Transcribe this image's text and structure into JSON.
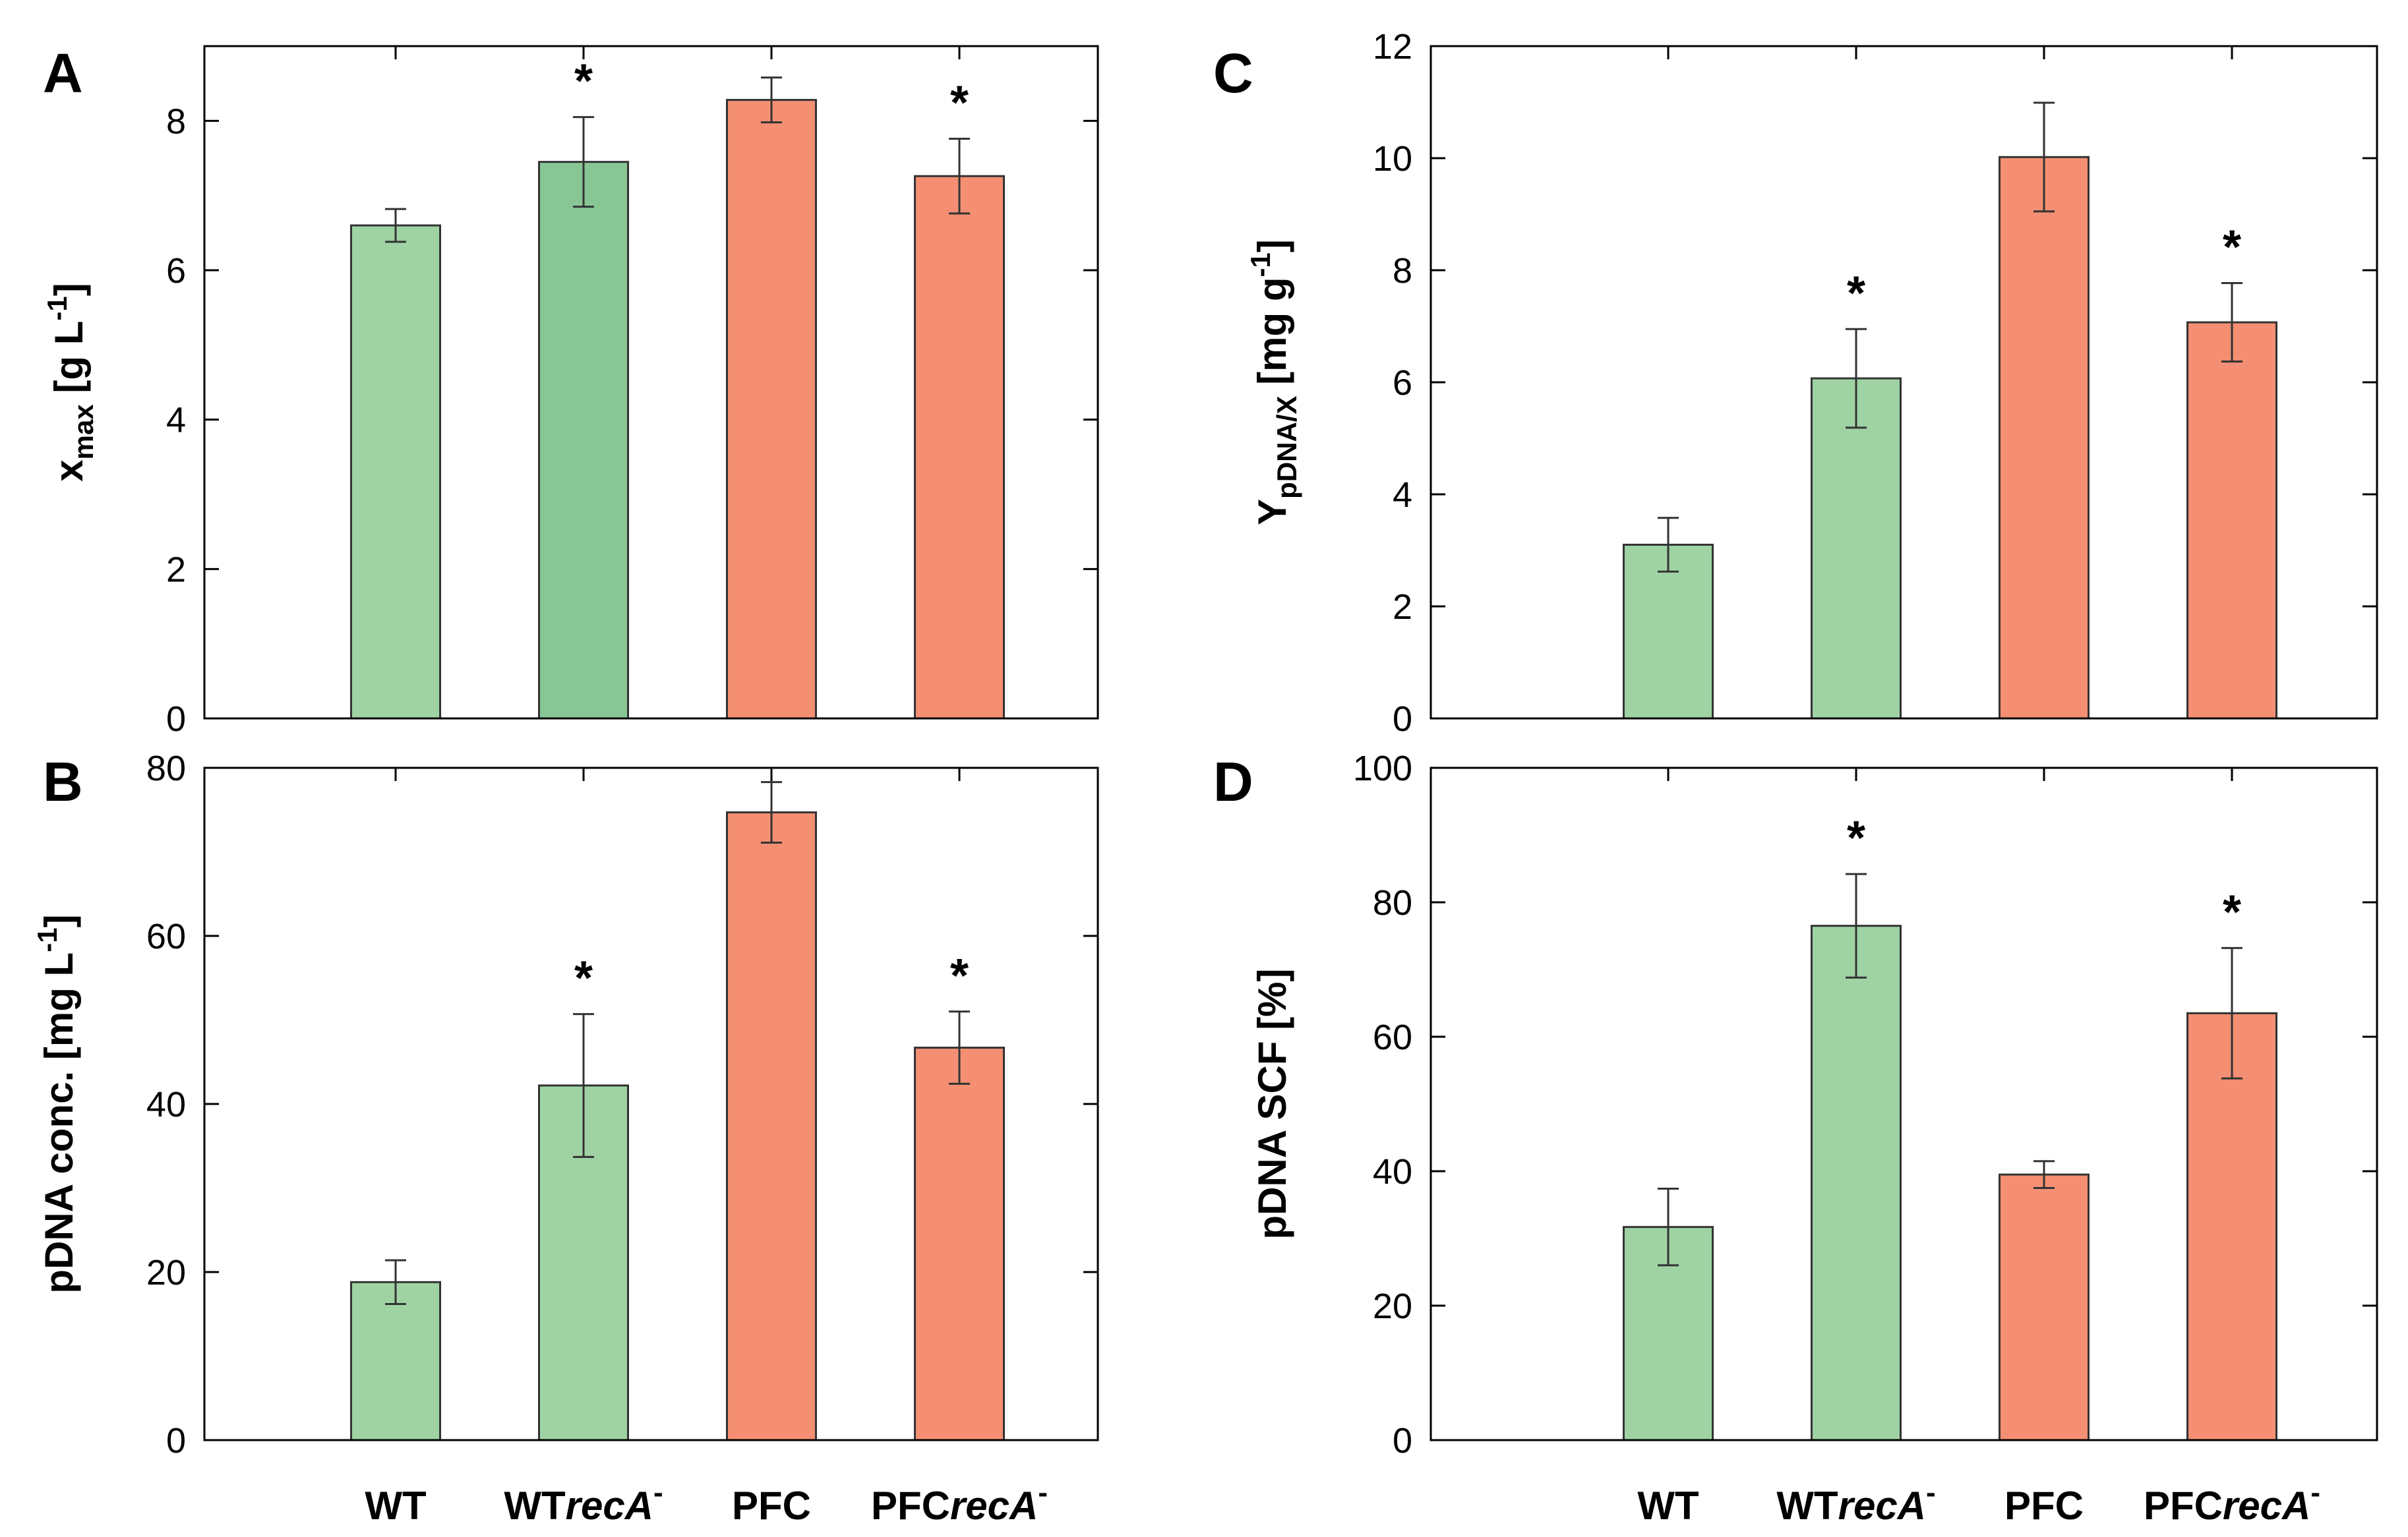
{
  "colors": {
    "green": "#9fd3a4",
    "green_dark": "#88c795",
    "orange": "#f48f73"
  },
  "category_labels": [
    {
      "base": "WT",
      "italic": "",
      "sup": ""
    },
    {
      "base": "WT",
      "italic": "recA",
      "sup": "-"
    },
    {
      "base": "PFC",
      "italic": "",
      "sup": ""
    },
    {
      "base": "PFC",
      "italic": "recA",
      "sup": "-"
    }
  ],
  "chart_data": [
    {
      "panel": "A",
      "type": "bar",
      "categories": [
        "WT",
        "WTrecA-",
        "PFC",
        "PFCrecA-"
      ],
      "values": [
        6.6,
        7.45,
        8.28,
        7.26
      ],
      "errors": [
        0.22,
        0.6,
        0.3,
        0.5
      ],
      "significant": [
        false,
        true,
        false,
        true
      ],
      "bar_colors": [
        "green",
        "green_dark",
        "orange",
        "orange"
      ],
      "ylim": [
        0,
        9
      ],
      "yticks": [
        0,
        2,
        4,
        6,
        8
      ],
      "ylabel": {
        "main": "x",
        "sub": "max",
        "unit": " [g L",
        "sup": "-1",
        "close": "]"
      },
      "show_categories": false
    },
    {
      "panel": "B",
      "type": "bar",
      "categories": [
        "WT",
        "WTrecA-",
        "PFC",
        "PFCrecA-"
      ],
      "values": [
        18.8,
        42.2,
        74.7,
        46.7
      ],
      "errors": [
        2.6,
        8.5,
        3.6,
        4.3
      ],
      "significant": [
        false,
        true,
        false,
        true
      ],
      "bar_colors": [
        "green",
        "green",
        "orange",
        "orange"
      ],
      "ylim": [
        0,
        80
      ],
      "yticks": [
        0,
        20,
        40,
        60,
        80
      ],
      "ylabel": {
        "main": "pDNA conc.",
        "sub": "",
        "unit": " [mg L",
        "sup": "-1",
        "close": "]"
      },
      "show_categories": true
    },
    {
      "panel": "C",
      "type": "bar",
      "categories": [
        "WT",
        "WTrecA-",
        "PFC",
        "PFCrecA-"
      ],
      "values": [
        3.1,
        6.07,
        10.02,
        7.07
      ],
      "errors": [
        0.48,
        0.88,
        0.97,
        0.7
      ],
      "significant": [
        false,
        true,
        false,
        true
      ],
      "bar_colors": [
        "green",
        "green",
        "orange",
        "orange"
      ],
      "ylim": [
        0,
        12
      ],
      "yticks": [
        0,
        2,
        4,
        6,
        8,
        10,
        12
      ],
      "ylabel": {
        "main": "Y",
        "sub": "pDNA/X",
        "unit": " [mg g",
        "sup": "-1",
        "close": "]"
      },
      "show_categories": false
    },
    {
      "panel": "D",
      "type": "bar",
      "categories": [
        "WT",
        "WTrecA-",
        "PFC",
        "PFCrecA-"
      ],
      "values": [
        31.7,
        76.5,
        39.5,
        63.5
      ],
      "errors": [
        5.7,
        7.7,
        2.0,
        9.7
      ],
      "significant": [
        false,
        true,
        false,
        true
      ],
      "bar_colors": [
        "green",
        "green",
        "orange",
        "orange"
      ],
      "ylim": [
        0,
        100
      ],
      "yticks": [
        0,
        20,
        40,
        60,
        80,
        100
      ],
      "ylabel": {
        "main": "pDNA SCF [%]",
        "sub": "",
        "unit": "",
        "sup": "",
        "close": ""
      },
      "show_categories": true
    }
  ],
  "significance_marker": "*"
}
